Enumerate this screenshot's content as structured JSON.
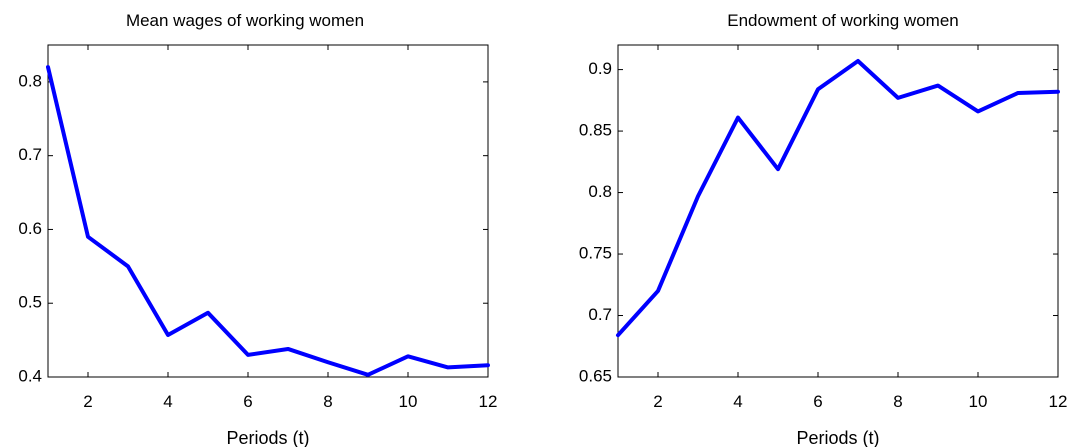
{
  "chart_data": [
    {
      "type": "line",
      "title": "Mean wages of working women",
      "xlabel": "Periods (t)",
      "ylabel": "",
      "xlim": [
        1,
        12
      ],
      "ylim": [
        0.4,
        0.85
      ],
      "xticks": [
        2,
        4,
        6,
        8,
        10,
        12
      ],
      "xtick_labels": [
        "2",
        "4",
        "6",
        "8",
        "10",
        "12"
      ],
      "yticks": [
        0.4,
        0.5,
        0.6,
        0.7,
        0.8
      ],
      "ytick_labels": [
        "0.4",
        "0.5",
        "0.6",
        "0.7",
        "0.8"
      ],
      "grid": false,
      "series": [
        {
          "color": "#0000ff",
          "x": [
            1,
            2,
            3,
            4,
            5,
            6,
            7,
            8,
            9,
            10,
            11,
            12
          ],
          "values": [
            0.82,
            0.59,
            0.55,
            0.457,
            0.487,
            0.43,
            0.438,
            0.42,
            0.403,
            0.428,
            0.413,
            0.416
          ]
        }
      ]
    },
    {
      "type": "line",
      "title": "Endowment of working women",
      "xlabel": "Periods (t)",
      "ylabel": "",
      "xlim": [
        1,
        12
      ],
      "ylim": [
        0.65,
        0.92
      ],
      "xticks": [
        2,
        4,
        6,
        8,
        10,
        12
      ],
      "xtick_labels": [
        "2",
        "4",
        "6",
        "8",
        "10",
        "12"
      ],
      "yticks": [
        0.65,
        0.7,
        0.75,
        0.8,
        0.85,
        0.9
      ],
      "ytick_labels": [
        "0.65",
        "0.7",
        "0.75",
        "0.8",
        "0.85",
        "0.9"
      ],
      "grid": false,
      "series": [
        {
          "color": "#0000ff",
          "x": [
            1,
            2,
            3,
            4,
            5,
            6,
            7,
            8,
            9,
            10,
            11,
            12
          ],
          "values": [
            0.684,
            0.72,
            0.797,
            0.861,
            0.819,
            0.884,
            0.907,
            0.877,
            0.887,
            0.866,
            0.881,
            0.882
          ]
        }
      ]
    }
  ]
}
